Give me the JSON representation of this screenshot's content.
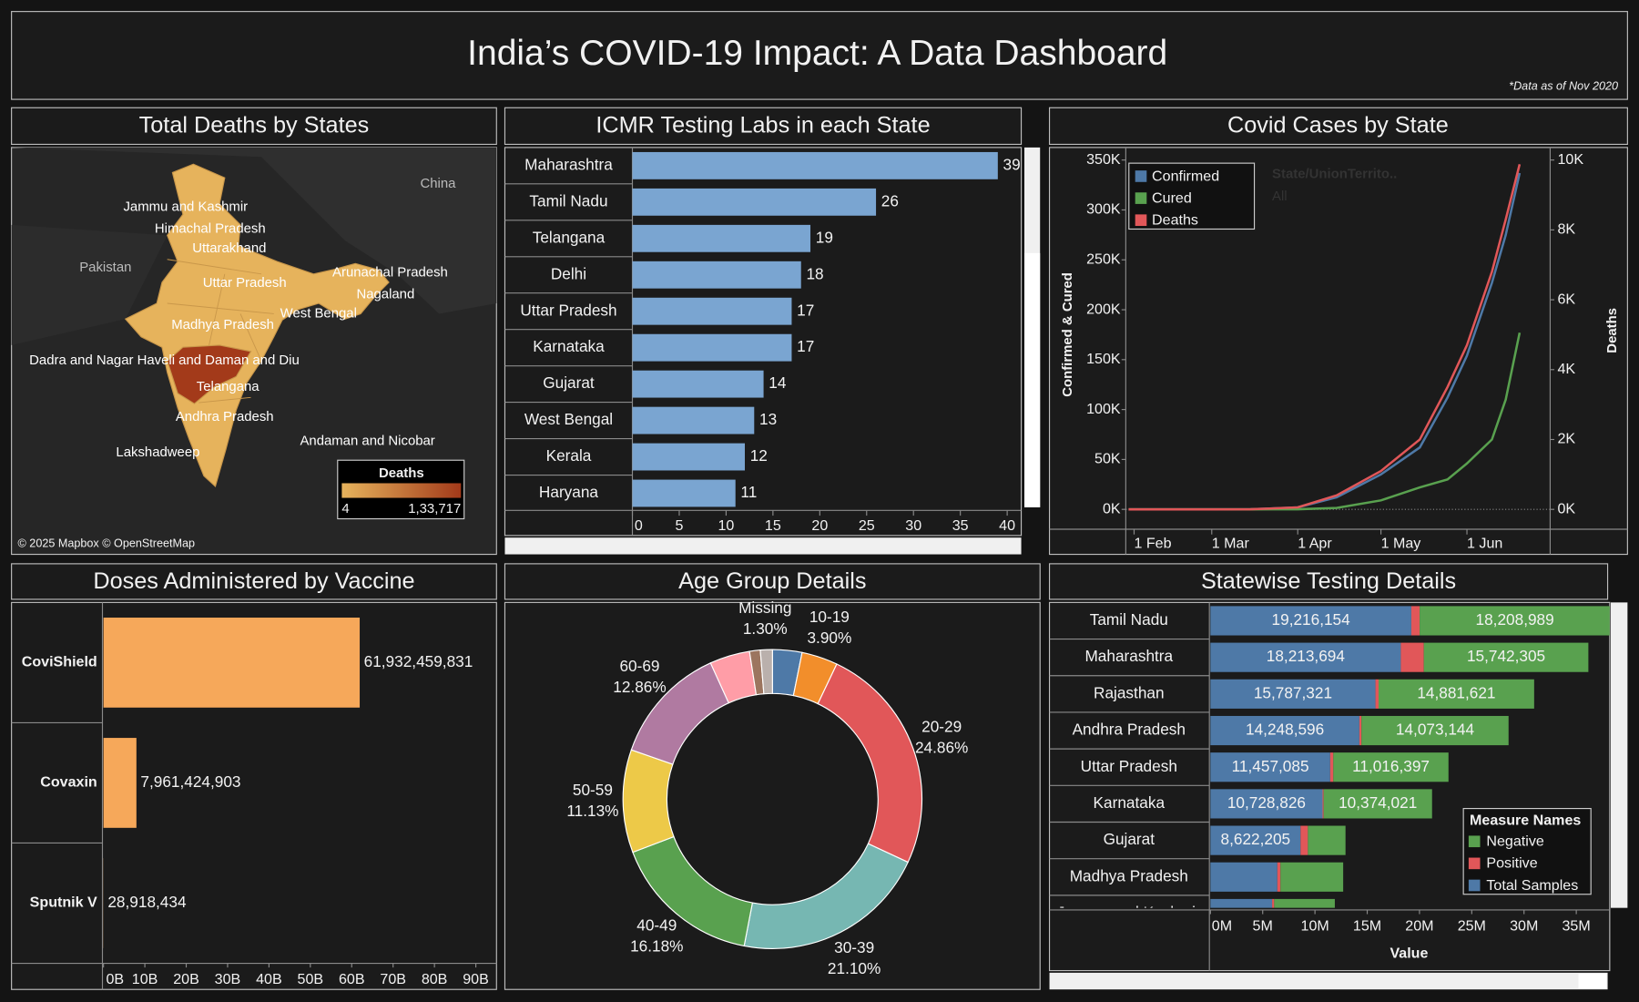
{
  "title": "India’s COVID-19 Impact: A Data Dashboard",
  "note": "*Data as of Nov 2020",
  "chart_data": [
    {
      "type": "map",
      "title": "Total Deaths by States",
      "labels": [
        "Jammu and Kashmir",
        "Himachal Pradesh",
        "Uttarakhand",
        "Pakistan",
        "China",
        "Uttar Pradesh",
        "Arunachal Pradesh",
        "Nagaland",
        "West Bengal",
        "Madhya Pradesh",
        "Dadra and Nagar Haveli and Daman and Diu",
        "Telangana",
        "Andhra Pradesh",
        "Andaman and Nicobar",
        "Lakshadweep"
      ],
      "legend_title": "Deaths",
      "legend_range": [
        4,
        {
          "value": 133717,
          "label": "1,33,717"
        }
      ],
      "colors": [
        "#e6b35c",
        "#a33a1a"
      ],
      "attribution": "© 2025 Mapbox © OpenStreetMap"
    },
    {
      "type": "bar",
      "title": "ICMR Testing Labs in each State",
      "categories": [
        "Maharashtra",
        "Tamil Nadu",
        "Telangana",
        "Delhi",
        "Uttar Pradesh",
        "Karnataka",
        "Gujarat",
        "West Bengal",
        "Kerala",
        "Haryana"
      ],
      "values": [
        39,
        26,
        19,
        18,
        17,
        17,
        14,
        13,
        12,
        11
      ],
      "color": "#7aa5d1",
      "xlim": [
        0,
        41.5
      ],
      "xticks": [
        0,
        5,
        10,
        15,
        20,
        25,
        30,
        35,
        40
      ]
    },
    {
      "type": "line",
      "title": "Covid Cases by State",
      "x": [
        "30 Jan",
        "15 Feb",
        "1 Mar",
        "15 Mar",
        "1 Apr",
        "15 Apr",
        "1 May",
        "15 May",
        "25 May",
        "1 Jun",
        "10 Jun",
        "15 Jun",
        "20 Jun"
      ],
      "xlim": [
        "29 Jan",
        "1 Jul"
      ],
      "xticks": [
        "1 Feb",
        "1 Mar",
        "1 Apr",
        "1 May",
        "1 Jun"
      ],
      "series": [
        {
          "name": "Confirmed",
          "color": "#4e79a7",
          "values": [
            1,
            3,
            3,
            110,
            1998,
            12000,
            35000,
            62000,
            112000,
            154000,
            227000,
            275000,
            337000
          ]
        },
        {
          "name": "Cured",
          "color": "#59a14f",
          "values": [
            0,
            0,
            3,
            13,
            148,
            1500,
            9000,
            22000,
            30000,
            46000,
            70000,
            110000,
            177000
          ]
        },
        {
          "name": "Deaths",
          "color": "#e15759",
          "axis": "y2",
          "values": [
            0,
            0,
            0,
            2,
            58,
            400,
            1100,
            2000,
            3500,
            4700,
            6800,
            8300,
            9880
          ]
        }
      ],
      "ylabel": "Confirmed & Cured",
      "y2label": "Deaths",
      "ylim": [
        0,
        350000
      ],
      "yticks": [
        {
          "value": 0,
          "label": "0K"
        },
        {
          "value": 50000,
          "label": "50K"
        },
        {
          "value": 100000,
          "label": "100K"
        },
        {
          "value": 150000,
          "label": "150K"
        },
        {
          "value": 200000,
          "label": "200K"
        },
        {
          "value": 250000,
          "label": "250K"
        },
        {
          "value": 300000,
          "label": "300K"
        },
        {
          "value": 350000,
          "label": "350K"
        }
      ],
      "y2lim": [
        0,
        10000
      ],
      "y2ticks": [
        {
          "value": 0,
          "label": "0K"
        },
        {
          "value": 2000,
          "label": "2K"
        },
        {
          "value": 4000,
          "label": "4K"
        },
        {
          "value": 6000,
          "label": "6K"
        },
        {
          "value": 8000,
          "label": "8K"
        },
        {
          "value": 10000,
          "label": "10K"
        }
      ],
      "filter_title": "State/UnionTerrito..",
      "filter_value": "All"
    },
    {
      "type": "bar",
      "title": "Doses Administered by Vaccine",
      "categories": [
        "CoviShield",
        "Covaxin",
        "Sputnik V"
      ],
      "values": [
        61932459831,
        7961424903,
        28918434
      ],
      "value_labels": [
        "61,932,459,831",
        "7,961,424,903",
        "28,918,434"
      ],
      "color": "#f6a85a",
      "xlim": [
        0,
        95000000000
      ],
      "xticks": [
        {
          "value": 0,
          "label": "0B"
        },
        {
          "value": 10000000000,
          "label": "10B"
        },
        {
          "value": 20000000000,
          "label": "20B"
        },
        {
          "value": 30000000000,
          "label": "30B"
        },
        {
          "value": 40000000000,
          "label": "40B"
        },
        {
          "value": 50000000000,
          "label": "50B"
        },
        {
          "value": 60000000000,
          "label": "60B"
        },
        {
          "value": 70000000000,
          "label": "70B"
        },
        {
          "value": 80000000000,
          "label": "80B"
        },
        {
          "value": 90000000000,
          "label": "90B"
        }
      ]
    },
    {
      "type": "donut",
      "title": "Age Group Details",
      "categories": [
        null,
        "10-19",
        "20-29",
        "30-39",
        "40-49",
        "50-59",
        "60-69",
        null,
        null,
        "Missing"
      ],
      "values": [
        3.18,
        3.9,
        24.86,
        21.1,
        16.18,
        11.13,
        12.86,
        4.34,
        1.16,
        1.3
      ],
      "value_labels": [
        null,
        "3.90%",
        "24.86%",
        "21.10%",
        "16.18%",
        "11.13%",
        "12.86%",
        null,
        null,
        "1.30%"
      ],
      "colors": [
        "#4e79a7",
        "#f28e2b",
        "#e15759",
        "#76b7b2",
        "#59a14f",
        "#edc948",
        "#b07aa1",
        "#ff9da7",
        "#9c755f",
        "#bab0ac"
      ]
    },
    {
      "type": "stacked_bar",
      "title": "Statewise Testing Details",
      "categories": [
        "Tamil Nadu",
        "Maharashtra",
        "Rajasthan",
        "Andhra Pradesh",
        "Uttar Pradesh",
        "Karnataka",
        "Gujarat",
        "Madhya Pradesh",
        "Jammu and Kashmir"
      ],
      "series": [
        {
          "name": "Negative",
          "color": "#59a14f",
          "values": [
            18208989,
            15742305,
            14881621,
            14073144,
            11016397,
            10374021,
            3600000,
            6000000,
            5800000
          ],
          "value_labels": [
            "18,208,989",
            "15,742,305",
            "14,881,621",
            "14,073,144",
            "11,016,397",
            "10,374,021",
            null,
            null,
            null
          ]
        },
        {
          "name": "Positive",
          "color": "#e15759",
          "values": [
            800000,
            2200000,
            300000,
            200000,
            300000,
            100000,
            700000,
            300000,
            200000
          ]
        },
        {
          "name": "Total Samples",
          "color": "#4e79a7",
          "values": [
            19216154,
            18213694,
            15787321,
            14248596,
            11457085,
            10728826,
            8622205,
            6400000,
            5900000
          ],
          "value_labels": [
            "19,216,154",
            "18,213,694",
            "15,787,321",
            "14,248,596",
            "11,457,085",
            "10,728,826",
            "8,622,205",
            null,
            null
          ]
        }
      ],
      "xlim": [
        0,
        38200000
      ],
      "xticks": [
        {
          "value": 0,
          "label": "0M"
        },
        {
          "value": 5000000,
          "label": "5M"
        },
        {
          "value": 10000000,
          "label": "10M"
        },
        {
          "value": 15000000,
          "label": "15M"
        },
        {
          "value": 20000000,
          "label": "20M"
        },
        {
          "value": 25000000,
          "label": "25M"
        },
        {
          "value": 30000000,
          "label": "30M"
        },
        {
          "value": 35000000,
          "label": "35M"
        }
      ],
      "xlabel": "Value",
      "legend_title": "Measure Names"
    }
  ]
}
